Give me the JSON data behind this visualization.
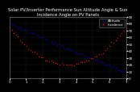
{
  "title": "Solar PV/Inverter Performance Sun Altitude Angle & Sun Incidence Angle on PV Panels",
  "legend_altitude": "Altitude",
  "legend_incidence": "Incidence",
  "background_color": "#000000",
  "plot_bg": "#000000",
  "grid_color": "#444444",
  "altitude_color": "#0000ff",
  "incidence_color": "#ff0000",
  "ylim": [
    0,
    90
  ],
  "xlim": [
    0,
    100
  ],
  "title_fontsize": 3.8,
  "tick_fontsize": 3.0,
  "legend_fontsize": 3.0,
  "title_color": "#ffffff",
  "tick_color": "#ffffff",
  "y_ticks": [
    0,
    10,
    20,
    30,
    40,
    50,
    60,
    70,
    80,
    90
  ],
  "x_tick_labels": [
    "Thu Jun 14 06:00",
    "08:00",
    "10:00",
    "12:00",
    "14:00",
    "16:00",
    "18:00",
    "Jun 14"
  ]
}
